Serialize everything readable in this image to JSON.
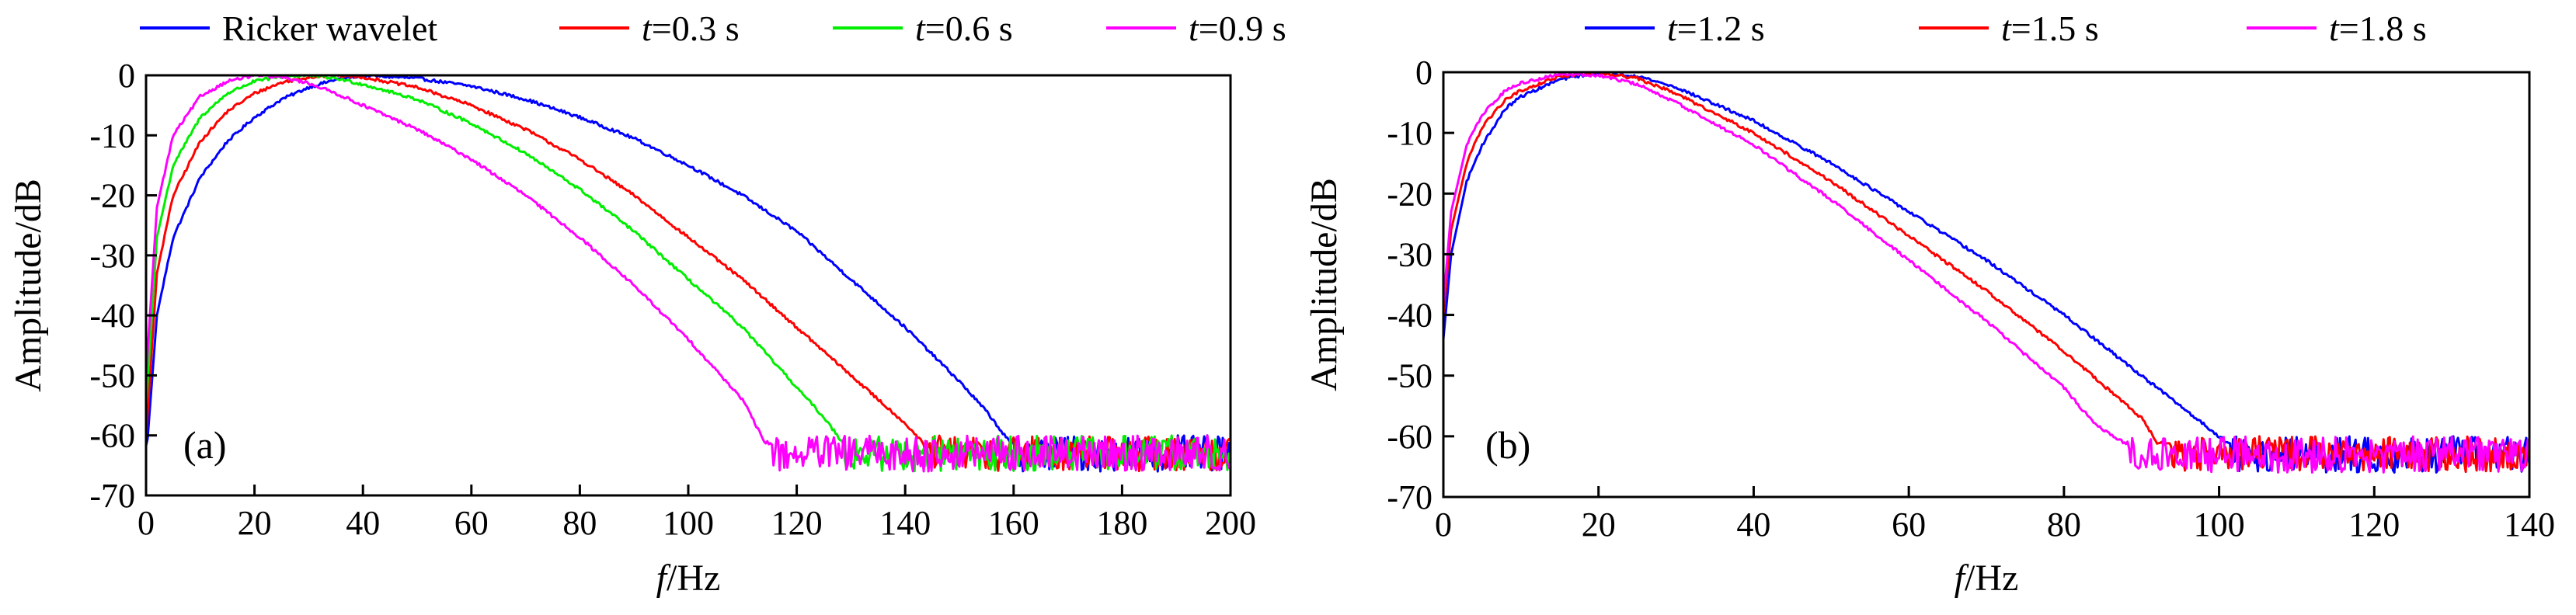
{
  "chart_data": [
    {
      "type": "line",
      "panel_label": "(a)",
      "xlabel_italic": "f",
      "xlabel_rest": "/Hz",
      "ylabel": "Amplitude/dB",
      "xlim": [
        0,
        200
      ],
      "ylim": [
        -70,
        0
      ],
      "xticks": [
        0,
        20,
        40,
        60,
        80,
        100,
        120,
        140,
        160,
        180,
        200
      ],
      "yticks": [
        0,
        -10,
        -20,
        -30,
        -40,
        -50,
        -60,
        -70
      ],
      "grid": false,
      "legend_position": "top",
      "noise_floor_db": -63,
      "series": [
        {
          "name": "Ricker wavelet",
          "italic_prefix": "",
          "name_text": "Ricker wavelet",
          "color": "#0000ff",
          "x": [
            0,
            2,
            5,
            10,
            15,
            20,
            25,
            30,
            35,
            40,
            50,
            60,
            70,
            80,
            90,
            100,
            110,
            120,
            130,
            140,
            150,
            155,
            160,
            170,
            180,
            190,
            200
          ],
          "y": [
            -64,
            -40,
            -27,
            -17,
            -11,
            -7,
            -4,
            -2,
            -0.7,
            0,
            -0.5,
            -1.8,
            -4,
            -7,
            -10.5,
            -15,
            -20,
            -26,
            -34,
            -42,
            -51,
            -56,
            -62,
            -63,
            -63,
            -63,
            -63
          ]
        },
        {
          "name": "t=0.3 s",
          "italic_prefix": "t",
          "name_text": "=0.3 s",
          "color": "#ff0000",
          "x": [
            0,
            2,
            5,
            10,
            15,
            20,
            25,
            30,
            35,
            40,
            50,
            60,
            70,
            80,
            90,
            100,
            110,
            120,
            130,
            140,
            145,
            150,
            160,
            170,
            180,
            190,
            200
          ],
          "y": [
            -60,
            -33,
            -20,
            -11,
            -6,
            -3,
            -1.2,
            -0.3,
            0,
            -0.3,
            -2,
            -5,
            -9,
            -14,
            -20,
            -27,
            -34,
            -42,
            -50,
            -58,
            -63,
            -63,
            -63,
            -63,
            -63,
            -63,
            -63
          ]
        },
        {
          "name": "t=0.6 s",
          "italic_prefix": "t",
          "name_text": "=0.6 s",
          "color": "#00ee00",
          "x": [
            0,
            2,
            5,
            10,
            15,
            20,
            25,
            30,
            35,
            40,
            50,
            60,
            70,
            80,
            90,
            100,
            110,
            120,
            125,
            130,
            140,
            150,
            160,
            170,
            180,
            190,
            200
          ],
          "y": [
            -55,
            -27,
            -15,
            -7,
            -3,
            -1,
            -0.2,
            0,
            -0.5,
            -1.5,
            -4,
            -8,
            -13,
            -19,
            -26,
            -34,
            -42,
            -52,
            -57,
            -63,
            -63,
            -63,
            -63,
            -63,
            -63,
            -63,
            -63
          ]
        },
        {
          "name": "t=0.9 s",
          "italic_prefix": "t",
          "name_text": "=0.9 s",
          "color": "#ff00ff",
          "x": [
            0,
            2,
            5,
            10,
            15,
            20,
            25,
            30,
            35,
            40,
            50,
            60,
            70,
            80,
            90,
            100,
            110,
            114,
            120,
            130,
            140,
            150,
            160,
            170,
            180,
            190,
            200
          ],
          "y": [
            -50,
            -22,
            -10,
            -3.5,
            -1,
            0,
            -0.3,
            -1.3,
            -3,
            -5,
            -9,
            -14,
            -20,
            -27,
            -35,
            -44,
            -54,
            -61,
            -63,
            -63,
            -63,
            -63,
            -63,
            -63,
            -63,
            -63,
            -63
          ]
        }
      ]
    },
    {
      "type": "line",
      "panel_label": "(b)",
      "xlabel_italic": "f",
      "xlabel_rest": "/Hz",
      "ylabel": "Amplitude/dB",
      "xlim": [
        0,
        140
      ],
      "ylim": [
        -70,
        0
      ],
      "xticks": [
        0,
        20,
        40,
        60,
        80,
        100,
        120,
        140
      ],
      "yticks": [
        0,
        -10,
        -20,
        -30,
        -40,
        -50,
        -60,
        -70
      ],
      "grid": false,
      "legend_position": "top",
      "noise_floor_db": -63,
      "series": [
        {
          "name": "t=1.2 s",
          "italic_prefix": "t",
          "name_text": "=1.2 s",
          "color": "#0000ff",
          "x": [
            0,
            1,
            3,
            5,
            8,
            10,
            15,
            20,
            25,
            30,
            40,
            50,
            60,
            70,
            80,
            90,
            100,
            103,
            110,
            120,
            130,
            140
          ],
          "y": [
            -44,
            -30,
            -18,
            -12,
            -6,
            -4,
            -1.2,
            0,
            -0.6,
            -2.5,
            -8,
            -15,
            -23,
            -31,
            -40,
            -50,
            -60,
            -63,
            -63,
            -63,
            -63,
            -63
          ]
        },
        {
          "name": "t=1.5 s",
          "italic_prefix": "t",
          "name_text": "=1.5 s",
          "color": "#ff0000",
          "x": [
            0,
            1,
            3,
            5,
            8,
            10,
            15,
            20,
            25,
            30,
            40,
            50,
            60,
            70,
            80,
            90,
            92,
            100,
            110,
            120,
            130,
            140
          ],
          "y": [
            -40,
            -26,
            -15,
            -9,
            -4.5,
            -3,
            -0.7,
            0,
            -1,
            -3.5,
            -10,
            -18,
            -27,
            -36,
            -46,
            -57,
            -61,
            -63,
            -63,
            -63,
            -63,
            -63
          ]
        },
        {
          "name": "t=1.8 s",
          "italic_prefix": "t",
          "name_text": "=1.8 s",
          "color": "#ff00ff",
          "x": [
            0,
            1,
            3,
            5,
            8,
            10,
            15,
            20,
            25,
            30,
            40,
            50,
            60,
            70,
            80,
            84,
            90,
            100,
            110,
            120,
            130,
            140
          ],
          "y": [
            -38,
            -23,
            -12,
            -7,
            -3,
            -1.8,
            -0.3,
            -0.5,
            -2,
            -5,
            -12,
            -21,
            -31,
            -41,
            -52,
            -58,
            -63,
            -63,
            -63,
            -63,
            -63,
            -63
          ]
        }
      ]
    }
  ]
}
